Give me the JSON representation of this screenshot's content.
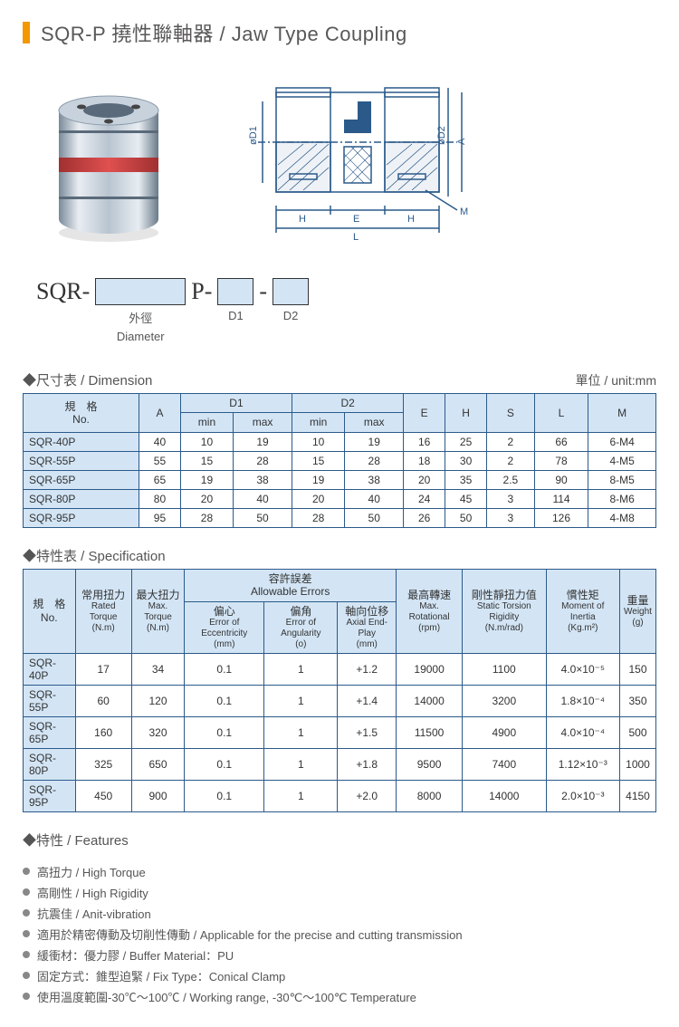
{
  "title": "SQR-P 撓性聯軸器 / Jaw Type Coupling",
  "partNumber": {
    "prefix": "SQR-",
    "mid": "P-",
    "dash": "-",
    "label1_cn": "外徑",
    "label1_en": "Diameter",
    "label2": "D1",
    "label3": "D2"
  },
  "diagram": {
    "labels": {
      "d1": "øD1",
      "d2": "øD2",
      "a": "A",
      "h": "H",
      "e": "E",
      "l": "L",
      "m": "M"
    },
    "stroke": "#2b5a8a",
    "hatch": "#2b5a8a"
  },
  "dimSection": {
    "title": "尺寸表 / Dimension",
    "unit": "單位 / unit:mm",
    "headers": {
      "no_cn": "規　格",
      "no_en": "No.",
      "a": "A",
      "d1": "D1",
      "d2": "D2",
      "min": "min",
      "max": "max",
      "e": "E",
      "h": "H",
      "s": "S",
      "l": "L",
      "m": "M"
    },
    "rows": [
      {
        "no": "SQR-40P",
        "a": "40",
        "d1min": "10",
        "d1max": "19",
        "d2min": "10",
        "d2max": "19",
        "e": "16",
        "h": "25",
        "s": "2",
        "l": "66",
        "m": "6-M4"
      },
      {
        "no": "SQR-55P",
        "a": "55",
        "d1min": "15",
        "d1max": "28",
        "d2min": "15",
        "d2max": "28",
        "e": "18",
        "h": "30",
        "s": "2",
        "l": "78",
        "m": "4-M5"
      },
      {
        "no": "SQR-65P",
        "a": "65",
        "d1min": "19",
        "d1max": "38",
        "d2min": "19",
        "d2max": "38",
        "e": "20",
        "h": "35",
        "s": "2.5",
        "l": "90",
        "m": "8-M5"
      },
      {
        "no": "SQR-80P",
        "a": "80",
        "d1min": "20",
        "d1max": "40",
        "d2min": "20",
        "d2max": "40",
        "e": "24",
        "h": "45",
        "s": "3",
        "l": "114",
        "m": "8-M6"
      },
      {
        "no": "SQR-95P",
        "a": "95",
        "d1min": "28",
        "d1max": "50",
        "d2min": "28",
        "d2max": "50",
        "e": "26",
        "h": "50",
        "s": "3",
        "l": "126",
        "m": "4-M8"
      }
    ]
  },
  "specSection": {
    "title": "特性表 / Specification",
    "headers": {
      "no_cn": "規　格",
      "no_en": "No.",
      "rated_cn": "常用扭力",
      "rated_en": "Rated Torque",
      "rated_unit": "(N.m)",
      "max_cn": "最大扭力",
      "max_en": "Max. Torque",
      "max_unit": "(N.m)",
      "allow_cn": "容許誤差",
      "allow_en": "Allowable Errors",
      "ecc_cn": "偏心",
      "ecc_en": "Error of Eccentricity",
      "ecc_unit": "(mm)",
      "ang_cn": "偏角",
      "ang_en": "Error of Angularity",
      "ang_unit": "(o)",
      "axial_cn": "軸向位移",
      "axial_en": "Axial End-Play",
      "axial_unit": "(mm)",
      "rpm_cn": "最高轉速",
      "rpm_en": "Max. Rotational",
      "rpm_unit": "(rpm)",
      "rig_cn": "剛性靜扭力值",
      "rig_en": "Static Torsion Rigidity",
      "rig_unit": "(N.m/rad)",
      "moi_cn": "慣性矩",
      "moi_en": "Moment of Inertia",
      "moi_unit": "(Kg.m²)",
      "wt_cn": "重量",
      "wt_en": "Weight",
      "wt_unit": "(g)"
    },
    "rows": [
      {
        "no": "SQR-40P",
        "rated": "17",
        "max": "34",
        "ecc": "0.1",
        "ang": "1",
        "axial": "+1.2",
        "rpm": "19000",
        "rig": "1100",
        "moi": "4.0×10⁻⁵",
        "wt": "150"
      },
      {
        "no": "SQR-55P",
        "rated": "60",
        "max": "120",
        "ecc": "0.1",
        "ang": "1",
        "axial": "+1.4",
        "rpm": "14000",
        "rig": "3200",
        "moi": "1.8×10⁻⁴",
        "wt": "350"
      },
      {
        "no": "SQR-65P",
        "rated": "160",
        "max": "320",
        "ecc": "0.1",
        "ang": "1",
        "axial": "+1.5",
        "rpm": "11500",
        "rig": "4900",
        "moi": "4.0×10⁻⁴",
        "wt": "500"
      },
      {
        "no": "SQR-80P",
        "rated": "325",
        "max": "650",
        "ecc": "0.1",
        "ang": "1",
        "axial": "+1.8",
        "rpm": "9500",
        "rig": "7400",
        "moi": "1.12×10⁻³",
        "wt": "1000"
      },
      {
        "no": "SQR-95P",
        "rated": "450",
        "max": "900",
        "ecc": "0.1",
        "ang": "1",
        "axial": "+2.0",
        "rpm": "8000",
        "rig": "14000",
        "moi": "2.0×10⁻³",
        "wt": "4150"
      }
    ]
  },
  "features": {
    "title": "特性 / Features",
    "items": [
      "高扭力 / High Torque",
      "高剛性 / High Rigidity",
      "抗震佳 / Anit-vibration",
      "適用於精密傳動及切削性傳動 / Applicable for the precise and cutting transmission",
      "緩衝材：優力膠 / Buffer Material：PU",
      "固定方式：錐型迫緊 / Fix Type：Conical Clamp",
      "使用溫度範圍-30℃～100℃ / Working range, -30℃～100℃ Temperature"
    ]
  },
  "colors": {
    "accent": "#f39800",
    "tableBorder": "#2b5a8a",
    "headerBg": "#d3e5f5",
    "text": "#595757"
  }
}
